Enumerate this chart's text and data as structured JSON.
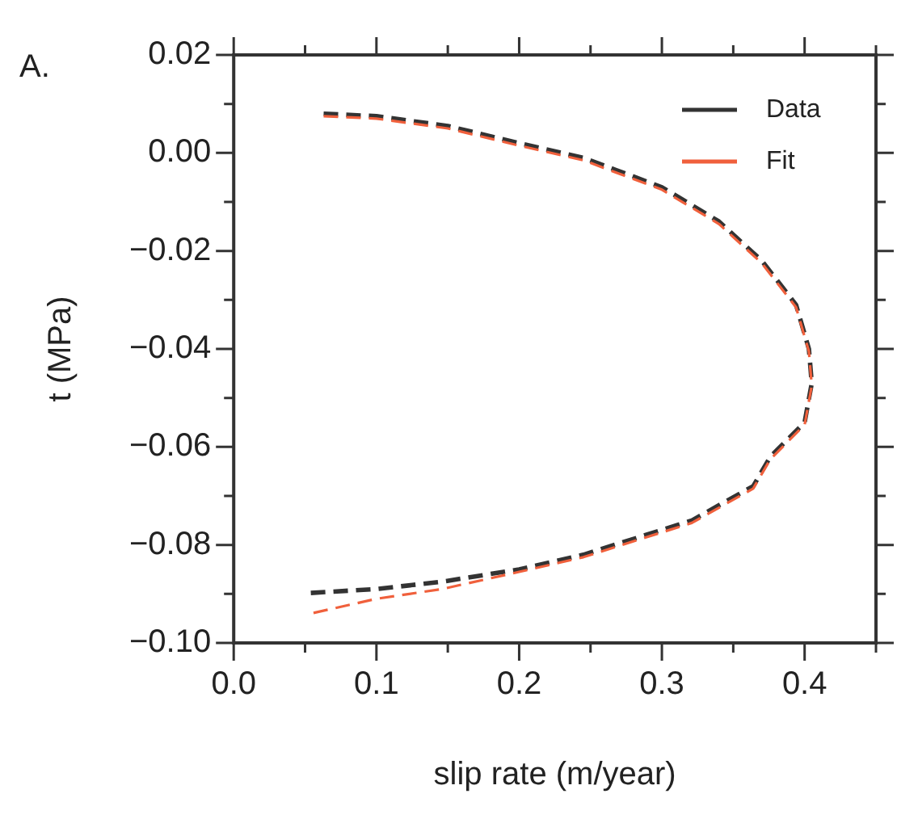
{
  "chart_data": {
    "type": "line",
    "xlabel": "slip rate (m/year)",
    "ylabel": "t (MPa)",
    "annotations": [
      "A."
    ],
    "xlim": [
      0,
      0.45
    ],
    "ylim": [
      -0.1,
      0.02
    ],
    "xticks": [
      {
        "value": 0,
        "label": "0.0"
      },
      {
        "value": 0.05,
        "label": null
      },
      {
        "value": 0.1,
        "label": "0.1"
      },
      {
        "value": 0.15,
        "label": null
      },
      {
        "value": 0.2,
        "label": "0.2"
      },
      {
        "value": 0.25,
        "label": null
      },
      {
        "value": 0.3,
        "label": "0.3"
      },
      {
        "value": 0.35,
        "label": null
      },
      {
        "value": 0.4,
        "label": "0.4"
      },
      {
        "value": 0.45,
        "label": null
      }
    ],
    "yticks": [
      {
        "value": -0.1,
        "label": "−0.10"
      },
      {
        "value": -0.09,
        "label": null
      },
      {
        "value": -0.08,
        "label": "−0.08"
      },
      {
        "value": -0.07,
        "label": null
      },
      {
        "value": -0.06,
        "label": "−0.06"
      },
      {
        "value": -0.05,
        "label": null
      },
      {
        "value": -0.04,
        "label": "−0.04"
      },
      {
        "value": -0.03,
        "label": null
      },
      {
        "value": -0.02,
        "label": "−0.02"
      },
      {
        "value": -0.01,
        "label": null
      },
      {
        "value": 0,
        "label": "0.00"
      },
      {
        "value": 0.01,
        "label": null
      },
      {
        "value": 0.02,
        "label": "0.02"
      }
    ],
    "grid": false,
    "legend": "top right",
    "marker": "none",
    "line_style": "dashed",
    "series": [
      {
        "name": "Data",
        "color": "#333333",
        "x": [
          0.063,
          0.1,
          0.15,
          0.2,
          0.245,
          0.3,
          0.34,
          0.37,
          0.394,
          0.403,
          0.405,
          0.4,
          0.376,
          0.364,
          0.321,
          0.245,
          0.2,
          0.146,
          0.1,
          0.054
        ],
        "values": [
          0.008,
          0.0075,
          0.0055,
          0.002,
          -0.001,
          -0.007,
          -0.014,
          -0.022,
          -0.031,
          -0.04,
          -0.047,
          -0.055,
          -0.062,
          -0.068,
          -0.075,
          -0.082,
          -0.085,
          -0.0875,
          -0.089,
          -0.0898
        ]
      },
      {
        "name": "Fit",
        "color": "#f0603c",
        "x": [
          0.063,
          0.1,
          0.15,
          0.2,
          0.245,
          0.3,
          0.34,
          0.37,
          0.394,
          0.403,
          0.405,
          0.4,
          0.376,
          0.364,
          0.321,
          0.245,
          0.2,
          0.146,
          0.1,
          0.054
        ],
        "values": [
          0.0075,
          0.007,
          0.005,
          0.0015,
          -0.0015,
          -0.0075,
          -0.0145,
          -0.0225,
          -0.0315,
          -0.0405,
          -0.0475,
          -0.0555,
          -0.0625,
          -0.0685,
          -0.0755,
          -0.0825,
          -0.0855,
          -0.089,
          -0.091,
          -0.094
        ]
      }
    ]
  }
}
